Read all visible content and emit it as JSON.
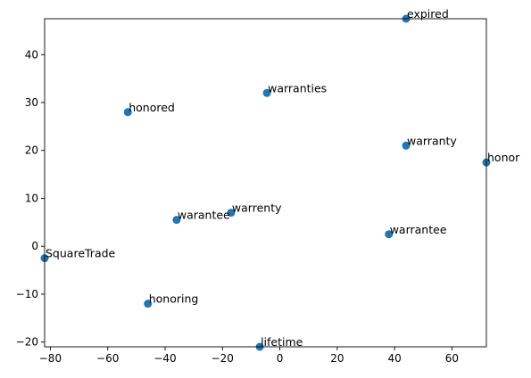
{
  "chart_data": {
    "type": "scatter",
    "title": "",
    "xlabel": "",
    "ylabel": "",
    "xlim": [
      -82,
      72
    ],
    "ylim": [
      -21,
      47.5
    ],
    "xticks": [
      -80,
      -60,
      -40,
      -20,
      0,
      20,
      40,
      60
    ],
    "yticks": [
      -20,
      -10,
      0,
      10,
      20,
      30,
      40
    ],
    "xtick_labels": [
      "−80",
      "−60",
      "−40",
      "−20",
      "0",
      "20",
      "40",
      "60"
    ],
    "ytick_labels": [
      "−20",
      "−10",
      "0",
      "10",
      "20",
      "30",
      "40"
    ],
    "grid": false,
    "color": "#1f77b4",
    "points": [
      {
        "label": "expired",
        "x": 44,
        "y": 47.5
      },
      {
        "label": "warranties",
        "x": -4.5,
        "y": 32
      },
      {
        "label": "honored",
        "x": -53,
        "y": 28
      },
      {
        "label": "warranty",
        "x": 44,
        "y": 21
      },
      {
        "label": "honor",
        "x": 72,
        "y": 17.5
      },
      {
        "label": "warrenty",
        "x": -17,
        "y": 7
      },
      {
        "label": "warantee",
        "x": -36,
        "y": 5.5
      },
      {
        "label": "warrantee",
        "x": 38,
        "y": 2.5
      },
      {
        "label": "SquareTrade",
        "x": -82,
        "y": -2.5
      },
      {
        "label": "honoring",
        "x": -46,
        "y": -12
      },
      {
        "label": "lifetime",
        "x": -7,
        "y": -21
      }
    ]
  }
}
